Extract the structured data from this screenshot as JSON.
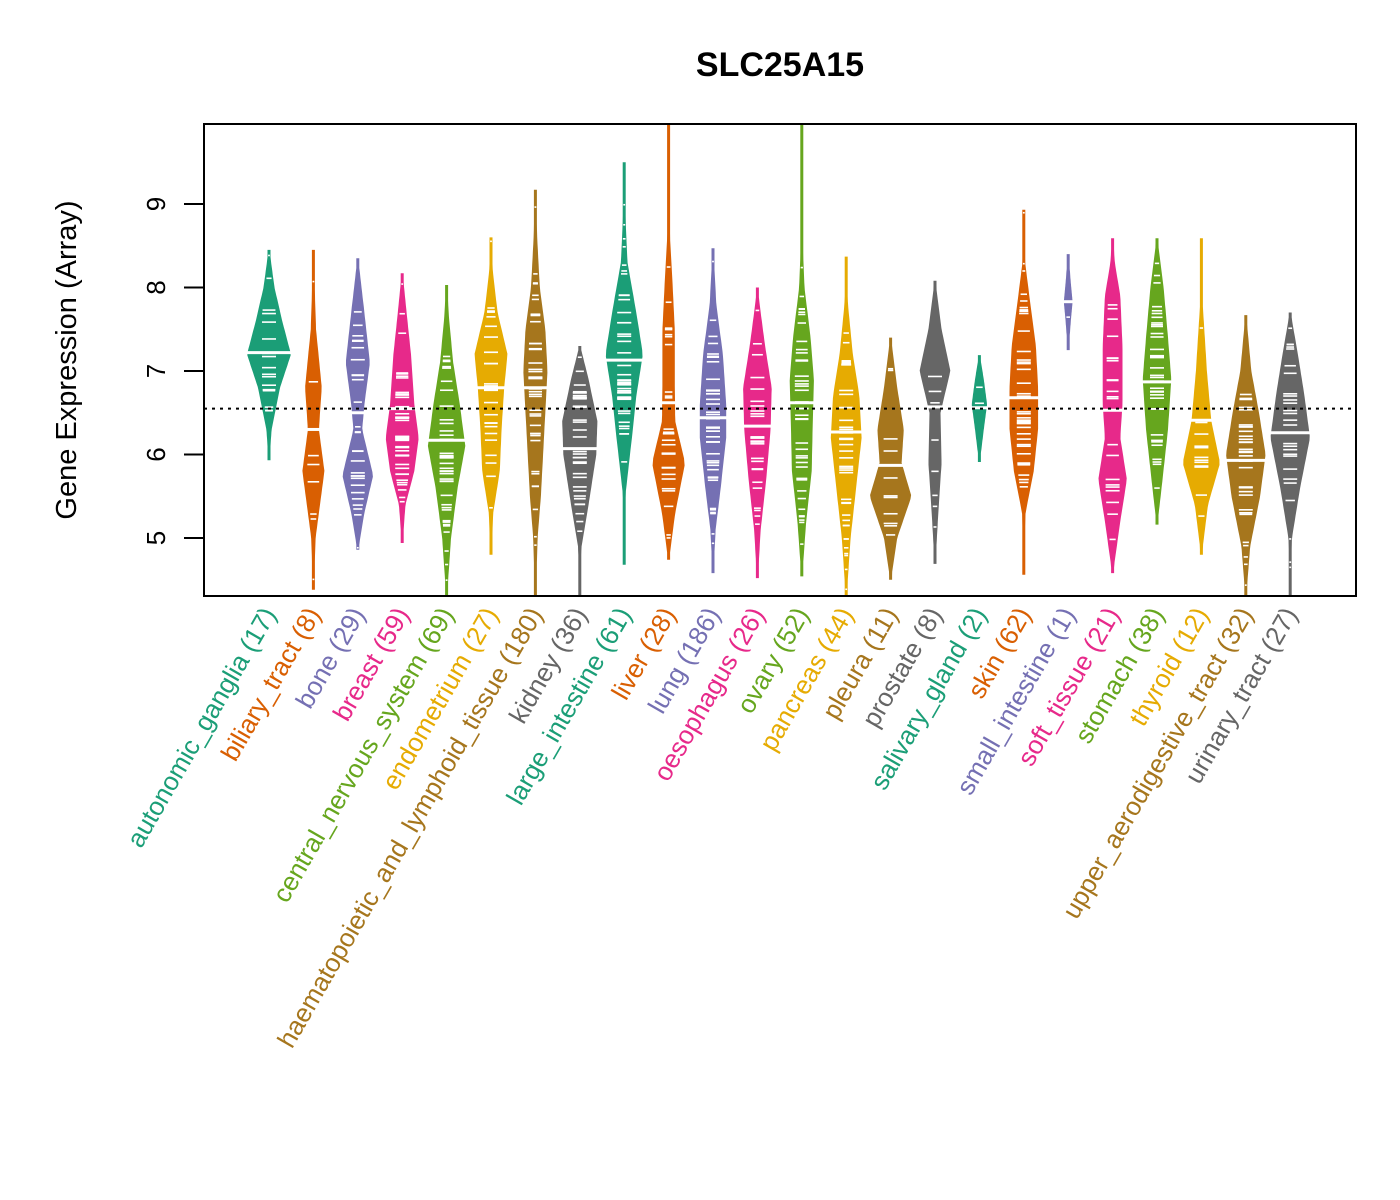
{
  "chart_data": {
    "type": "violin",
    "title": "SLC25A15",
    "xlabel": "",
    "ylabel": "Gene Expression (Array)",
    "ylim": [
      4.3,
      9.95
    ],
    "yticks": [
      5,
      6,
      7,
      8,
      9
    ],
    "reference_line": 6.55,
    "grid": false,
    "legend": "none",
    "palette": [
      "#1B9E77",
      "#D95F02",
      "#7570B3",
      "#E7298A",
      "#66A61E",
      "#E6AB02",
      "#A6761D",
      "#666666"
    ],
    "categories": [
      {
        "name": "autonomic_ganglia",
        "n": 17,
        "color": "#1B9E77",
        "min": 5.93,
        "max": 8.45,
        "median": 7.22,
        "profile": [
          [
            5.93,
            0.02
          ],
          [
            6.3,
            0.12
          ],
          [
            6.8,
            0.5
          ],
          [
            7.2,
            1.0
          ],
          [
            7.6,
            0.6
          ],
          [
            8.0,
            0.25
          ],
          [
            8.45,
            0.02
          ]
        ]
      },
      {
        "name": "biliary_tract",
        "n": 8,
        "color": "#D95F02",
        "min": 4.38,
        "max": 8.45,
        "median": 6.3,
        "profile": [
          [
            4.38,
            0.02
          ],
          [
            5.0,
            0.1
          ],
          [
            5.8,
            0.5
          ],
          [
            6.3,
            0.25
          ],
          [
            6.8,
            0.38
          ],
          [
            7.5,
            0.12
          ],
          [
            8.0,
            0.06
          ],
          [
            8.45,
            0.02
          ]
        ]
      },
      {
        "name": "bone",
        "n": 29,
        "color": "#7570B3",
        "min": 4.86,
        "max": 8.35,
        "median": 6.5,
        "profile": [
          [
            4.86,
            0.02
          ],
          [
            5.3,
            0.3
          ],
          [
            5.75,
            0.7
          ],
          [
            6.3,
            0.2
          ],
          [
            6.6,
            0.3
          ],
          [
            7.1,
            0.55
          ],
          [
            7.7,
            0.3
          ],
          [
            8.35,
            0.02
          ]
        ]
      },
      {
        "name": "breast",
        "n": 59,
        "color": "#E7298A",
        "min": 4.94,
        "max": 8.17,
        "median": 6.55,
        "profile": [
          [
            4.94,
            0.02
          ],
          [
            5.4,
            0.15
          ],
          [
            5.8,
            0.55
          ],
          [
            6.2,
            0.75
          ],
          [
            6.6,
            0.55
          ],
          [
            7.2,
            0.4
          ],
          [
            7.7,
            0.2
          ],
          [
            8.17,
            0.02
          ]
        ]
      },
      {
        "name": "central_nervous_system",
        "n": 69,
        "color": "#66A61E",
        "min": 4.3,
        "max": 8.03,
        "median": 6.17,
        "profile": [
          [
            4.3,
            0.02
          ],
          [
            5.0,
            0.2
          ],
          [
            5.6,
            0.5
          ],
          [
            6.1,
            0.85
          ],
          [
            6.6,
            0.6
          ],
          [
            7.1,
            0.3
          ],
          [
            7.6,
            0.12
          ],
          [
            8.03,
            0.02
          ]
        ]
      },
      {
        "name": "endometrium",
        "n": 27,
        "color": "#E6AB02",
        "min": 4.8,
        "max": 8.6,
        "median": 6.8,
        "profile": [
          [
            4.8,
            0.02
          ],
          [
            5.3,
            0.1
          ],
          [
            5.8,
            0.4
          ],
          [
            6.3,
            0.48
          ],
          [
            6.8,
            0.6
          ],
          [
            7.2,
            0.75
          ],
          [
            7.7,
            0.3
          ],
          [
            8.2,
            0.08
          ],
          [
            8.6,
            0.02
          ]
        ]
      },
      {
        "name": "haematopoietic_and_lymphoid_tissue",
        "n": 180,
        "color": "#A6761D",
        "min": 4.3,
        "max": 9.17,
        "median": 6.8,
        "profile": [
          [
            4.3,
            0.02
          ],
          [
            5.0,
            0.1
          ],
          [
            5.5,
            0.25
          ],
          [
            6.0,
            0.35
          ],
          [
            6.5,
            0.45
          ],
          [
            7.0,
            0.55
          ],
          [
            7.5,
            0.45
          ],
          [
            8.0,
            0.2
          ],
          [
            8.6,
            0.08
          ],
          [
            9.17,
            0.02
          ]
        ]
      },
      {
        "name": "kidney",
        "n": 36,
        "color": "#666666",
        "min": 4.3,
        "max": 7.3,
        "median": 6.07,
        "profile": [
          [
            4.3,
            0.02
          ],
          [
            4.9,
            0.08
          ],
          [
            5.4,
            0.4
          ],
          [
            6.0,
            0.75
          ],
          [
            6.4,
            0.8
          ],
          [
            6.9,
            0.4
          ],
          [
            7.3,
            0.02
          ]
        ]
      },
      {
        "name": "large_intestine",
        "n": 61,
        "color": "#1B9E77",
        "min": 4.68,
        "max": 9.5,
        "median": 7.13,
        "profile": [
          [
            4.68,
            0.02
          ],
          [
            5.5,
            0.05
          ],
          [
            6.2,
            0.35
          ],
          [
            6.7,
            0.55
          ],
          [
            7.2,
            0.85
          ],
          [
            7.7,
            0.55
          ],
          [
            8.3,
            0.15
          ],
          [
            8.9,
            0.05
          ],
          [
            9.5,
            0.02
          ]
        ]
      },
      {
        "name": "liver",
        "n": 28,
        "color": "#D95F02",
        "min": 4.74,
        "max": 9.95,
        "median": 6.62,
        "profile": [
          [
            4.74,
            0.02
          ],
          [
            5.3,
            0.3
          ],
          [
            5.9,
            0.75
          ],
          [
            6.4,
            0.3
          ],
          [
            6.9,
            0.28
          ],
          [
            7.5,
            0.28
          ],
          [
            8.2,
            0.15
          ],
          [
            8.8,
            0.02
          ],
          [
            9.3,
            0.02
          ],
          [
            9.95,
            0.02
          ]
        ]
      },
      {
        "name": "lung",
        "n": 186,
        "color": "#7570B3",
        "min": 4.58,
        "max": 8.47,
        "median": 6.44,
        "profile": [
          [
            4.58,
            0.02
          ],
          [
            5.1,
            0.12
          ],
          [
            5.6,
            0.35
          ],
          [
            6.2,
            0.6
          ],
          [
            6.6,
            0.6
          ],
          [
            7.2,
            0.45
          ],
          [
            7.8,
            0.15
          ],
          [
            8.47,
            0.02
          ]
        ]
      },
      {
        "name": "oesophagus",
        "n": 26,
        "color": "#E7298A",
        "min": 4.52,
        "max": 8.0,
        "median": 6.34,
        "profile": [
          [
            4.52,
            0.02
          ],
          [
            5.1,
            0.15
          ],
          [
            5.7,
            0.4
          ],
          [
            6.3,
            0.6
          ],
          [
            6.8,
            0.65
          ],
          [
            7.3,
            0.35
          ],
          [
            7.8,
            0.1
          ],
          [
            8.0,
            0.02
          ]
        ]
      },
      {
        "name": "ovary",
        "n": 52,
        "color": "#66A61E",
        "min": 4.54,
        "max": 9.95,
        "median": 6.62,
        "profile": [
          [
            4.54,
            0.02
          ],
          [
            5.2,
            0.2
          ],
          [
            5.8,
            0.45
          ],
          [
            6.4,
            0.5
          ],
          [
            6.9,
            0.55
          ],
          [
            7.4,
            0.4
          ],
          [
            8.0,
            0.12
          ],
          [
            8.7,
            0.02
          ],
          [
            9.95,
            0.02
          ]
        ]
      },
      {
        "name": "pancreas",
        "n": 44,
        "color": "#E6AB02",
        "min": 4.3,
        "max": 8.37,
        "median": 6.27,
        "profile": [
          [
            4.3,
            0.02
          ],
          [
            5.0,
            0.2
          ],
          [
            5.6,
            0.45
          ],
          [
            6.2,
            0.7
          ],
          [
            6.7,
            0.6
          ],
          [
            7.2,
            0.3
          ],
          [
            7.8,
            0.08
          ],
          [
            8.37,
            0.02
          ]
        ]
      },
      {
        "name": "pleura",
        "n": 11,
        "color": "#A6761D",
        "min": 4.5,
        "max": 7.4,
        "median": 5.87,
        "profile": [
          [
            4.5,
            0.02
          ],
          [
            5.0,
            0.3
          ],
          [
            5.5,
            0.95
          ],
          [
            5.9,
            0.5
          ],
          [
            6.3,
            0.6
          ],
          [
            6.8,
            0.3
          ],
          [
            7.4,
            0.02
          ]
        ]
      },
      {
        "name": "prostate",
        "n": 8,
        "color": "#666666",
        "min": 4.69,
        "max": 8.08,
        "median": 6.57,
        "profile": [
          [
            4.69,
            0.02
          ],
          [
            5.3,
            0.15
          ],
          [
            5.9,
            0.3
          ],
          [
            6.5,
            0.25
          ],
          [
            7.0,
            0.7
          ],
          [
            7.5,
            0.3
          ],
          [
            8.08,
            0.02
          ]
        ]
      },
      {
        "name": "salivary_gland",
        "n": 2,
        "color": "#1B9E77",
        "min": 5.91,
        "max": 7.19,
        "median": 6.56,
        "profile": [
          [
            5.91,
            0.02
          ],
          [
            6.3,
            0.2
          ],
          [
            6.6,
            0.35
          ],
          [
            6.9,
            0.2
          ],
          [
            7.19,
            0.02
          ]
        ]
      },
      {
        "name": "skin",
        "n": 62,
        "color": "#D95F02",
        "min": 4.56,
        "max": 8.93,
        "median": 6.68,
        "profile": [
          [
            4.56,
            0.02
          ],
          [
            5.3,
            0.08
          ],
          [
            5.8,
            0.45
          ],
          [
            6.3,
            0.65
          ],
          [
            6.8,
            0.65
          ],
          [
            7.3,
            0.55
          ],
          [
            7.8,
            0.3
          ],
          [
            8.3,
            0.06
          ],
          [
            8.93,
            0.02
          ]
        ]
      },
      {
        "name": "small_intestine",
        "n": 1,
        "color": "#7570B3",
        "min": 7.25,
        "max": 8.4,
        "median": 7.83,
        "profile": [
          [
            7.25,
            0.02
          ],
          [
            7.6,
            0.12
          ],
          [
            7.83,
            0.2
          ],
          [
            8.05,
            0.12
          ],
          [
            8.4,
            0.02
          ]
        ]
      },
      {
        "name": "soft_tissue",
        "n": 21,
        "color": "#E7298A",
        "min": 4.58,
        "max": 8.59,
        "median": 6.53,
        "profile": [
          [
            4.58,
            0.02
          ],
          [
            5.2,
            0.35
          ],
          [
            5.7,
            0.65
          ],
          [
            6.2,
            0.35
          ],
          [
            6.6,
            0.45
          ],
          [
            7.3,
            0.45
          ],
          [
            7.9,
            0.35
          ],
          [
            8.3,
            0.1
          ],
          [
            8.59,
            0.02
          ]
        ]
      },
      {
        "name": "stomach",
        "n": 38,
        "color": "#66A61E",
        "min": 5.16,
        "max": 8.59,
        "median": 6.87,
        "profile": [
          [
            5.16,
            0.02
          ],
          [
            5.7,
            0.25
          ],
          [
            6.3,
            0.5
          ],
          [
            6.9,
            0.65
          ],
          [
            7.4,
            0.5
          ],
          [
            8.0,
            0.3
          ],
          [
            8.59,
            0.02
          ]
        ]
      },
      {
        "name": "thyroid",
        "n": 12,
        "color": "#E6AB02",
        "min": 4.8,
        "max": 8.59,
        "median": 6.41,
        "profile": [
          [
            4.8,
            0.02
          ],
          [
            5.4,
            0.3
          ],
          [
            5.9,
            0.85
          ],
          [
            6.4,
            0.45
          ],
          [
            7.0,
            0.25
          ],
          [
            7.8,
            0.06
          ],
          [
            8.59,
            0.02
          ]
        ]
      },
      {
        "name": "upper_aerodigestive_tract",
        "n": 32,
        "color": "#A6761D",
        "min": 4.3,
        "max": 7.67,
        "median": 5.93,
        "profile": [
          [
            4.3,
            0.02
          ],
          [
            4.9,
            0.2
          ],
          [
            5.5,
            0.65
          ],
          [
            6.0,
            0.9
          ],
          [
            6.5,
            0.6
          ],
          [
            7.0,
            0.25
          ],
          [
            7.67,
            0.02
          ]
        ]
      },
      {
        "name": "urinary_tract",
        "n": 27,
        "color": "#666666",
        "min": 4.3,
        "max": 7.7,
        "median": 6.26,
        "profile": [
          [
            4.3,
            0.02
          ],
          [
            5.0,
            0.08
          ],
          [
            5.6,
            0.45
          ],
          [
            6.2,
            0.9
          ],
          [
            6.7,
            0.65
          ],
          [
            7.2,
            0.35
          ],
          [
            7.7,
            0.02
          ]
        ]
      }
    ]
  }
}
